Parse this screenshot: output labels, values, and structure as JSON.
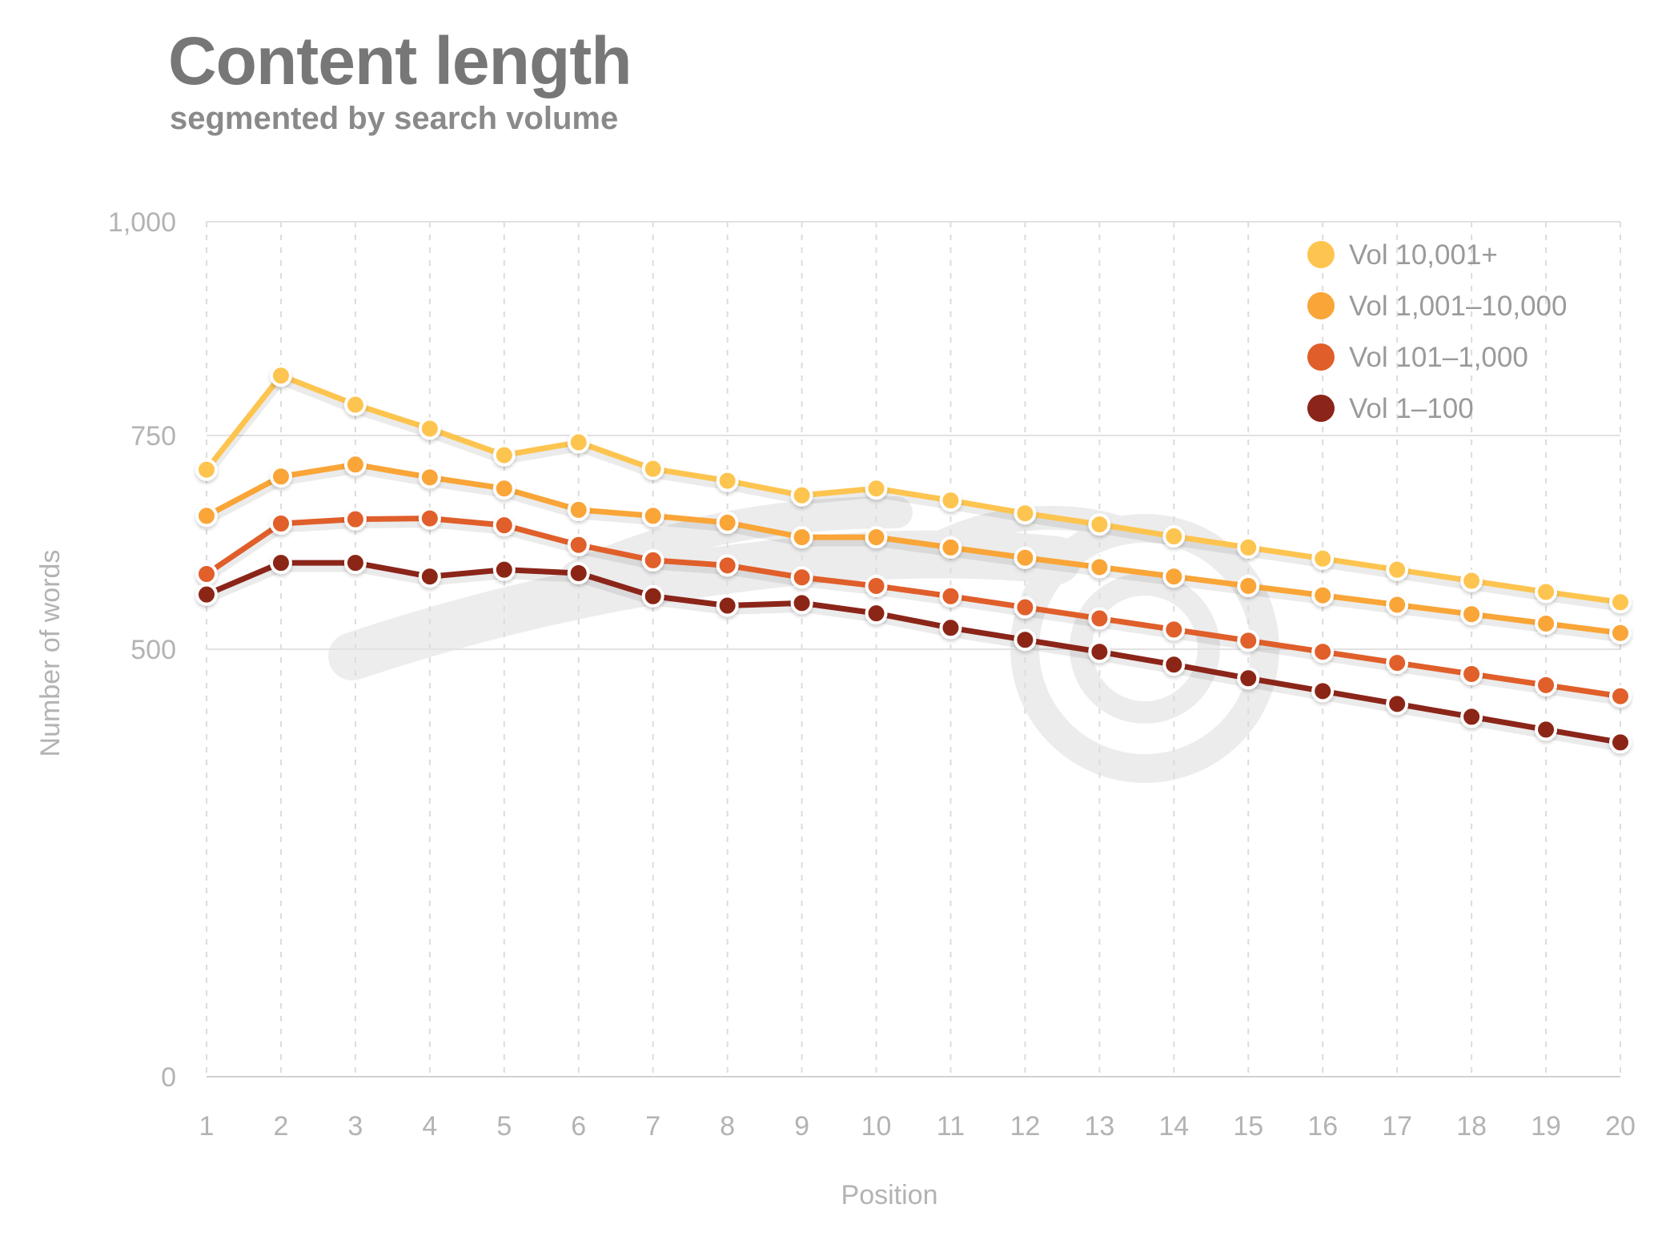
{
  "chart_data": {
    "type": "line",
    "title": "Content length",
    "subtitle": "segmented by search volume",
    "xlabel": "Position",
    "ylabel": "Number of words",
    "x": [
      1,
      2,
      3,
      4,
      5,
      6,
      7,
      8,
      9,
      10,
      11,
      12,
      13,
      14,
      15,
      16,
      17,
      18,
      19,
      20
    ],
    "x_tick_labels": [
      "1",
      "2",
      "3",
      "4",
      "5",
      "6",
      "7",
      "8",
      "9",
      "10",
      "11",
      "12",
      "13",
      "14",
      "15",
      "16",
      "17",
      "18",
      "19",
      "20"
    ],
    "y_ticks": [
      0,
      500,
      750,
      1000
    ],
    "y_tick_labels": [
      "0",
      "500",
      "750",
      "1,000"
    ],
    "ylim": [
      0,
      1000
    ],
    "grid": "horizontal solid, vertical dashed",
    "legend_position": "top-right",
    "series": [
      {
        "name": "Vol 10,001+",
        "color": "#FDC44F",
        "values": [
          710,
          820,
          786,
          758,
          727,
          742,
          711,
          697,
          680,
          688,
          674,
          659,
          646,
          632,
          619,
          606,
          593,
          580,
          567,
          555
        ]
      },
      {
        "name": "Vol 1,001–10,000",
        "color": "#F9A537",
        "values": [
          656,
          702,
          716,
          701,
          688,
          663,
          656,
          648,
          631,
          631,
          619,
          607,
          596,
          585,
          574,
          563,
          552,
          541,
          530,
          519
        ]
      },
      {
        "name": "Vol 101–1,000",
        "color": "#E05E2A",
        "values": [
          588,
          647,
          652,
          653,
          645,
          622,
          604,
          598,
          584,
          574,
          562,
          549,
          536,
          523,
          510,
          497,
          484,
          471,
          458,
          445
        ]
      },
      {
        "name": "Vol 1–100",
        "color": "#8B2519",
        "values": [
          564,
          601,
          601,
          585,
          593,
          589,
          562,
          551,
          554,
          542,
          525,
          511,
          497,
          482,
          466,
          451,
          436,
          421,
          406,
          391
        ]
      }
    ]
  }
}
